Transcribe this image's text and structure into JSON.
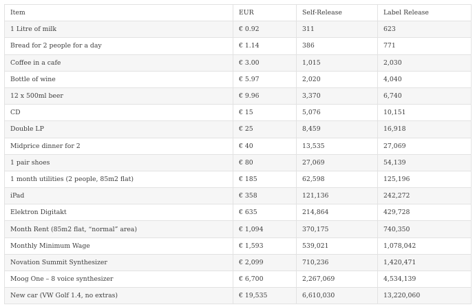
{
  "table": {
    "headers": [
      "Item",
      "EUR",
      "Self-Release",
      "Label Release"
    ],
    "rows": [
      [
        "1 Litre of milk",
        "€ 0.92",
        "311",
        "623"
      ],
      [
        "Bread for 2 people for a day",
        "€ 1.14",
        "386",
        "771"
      ],
      [
        "Coffee in a cafe",
        "€ 3.00",
        "1,015",
        "2,030"
      ],
      [
        "Bottle of wine",
        "€ 5.97",
        "2,020",
        "4,040"
      ],
      [
        "12 x 500ml beer",
        "€ 9.96",
        "3,370",
        "6,740"
      ],
      [
        "CD",
        "€ 15",
        "5,076",
        "10,151"
      ],
      [
        "Double LP",
        "€ 25",
        "8,459",
        "16,918"
      ],
      [
        "Midprice dinner for 2",
        "€ 40",
        "13,535",
        "27,069"
      ],
      [
        "1 pair shoes",
        "€ 80",
        "27,069",
        "54,139"
      ],
      [
        "1 month utilities (2 people, 85m2 flat)",
        "€ 185",
        "62,598",
        "125,196"
      ],
      [
        "iPad",
        "€ 358",
        "121,136",
        "242,272"
      ],
      [
        "Elektron Digitakt",
        "€ 635",
        "214,864",
        "429,728"
      ],
      [
        "Month Rent (85m2 flat, “normal” area)",
        "€ 1,094",
        "370,175",
        "740,350"
      ],
      [
        "Monthly Minimum Wage",
        "€ 1,593",
        "539,021",
        "1,078,042"
      ],
      [
        "Novation Summit Synthesizer",
        "€ 2,099",
        "710,236",
        "1,420,471"
      ],
      [
        "Moog One – 8 voice synthesizer",
        "€ 6,700",
        "2,267,069",
        "4,534,139"
      ],
      [
        "New car (VW Golf 1.4, no extras)",
        "€ 19,535",
        "6,610,030",
        "13,220,060"
      ]
    ]
  }
}
